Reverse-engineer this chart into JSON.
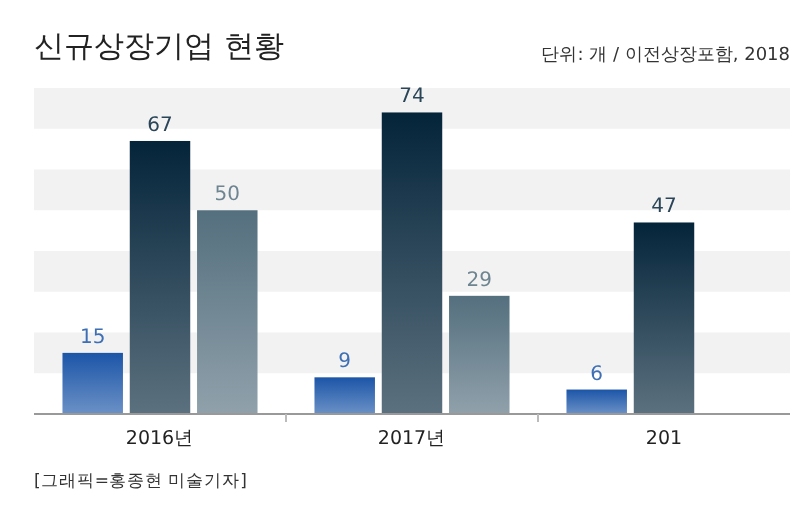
{
  "chart_data": {
    "type": "bar",
    "title": "신규상장기업 현황",
    "subtitle": "단위: 개 / 이전상장포함, 2018",
    "annotations": [
      "[그래픽=홍종현 미술기자]"
    ],
    "categories": [
      "2016년",
      "2017년",
      "201"
    ],
    "series": [
      {
        "color": "#1c55a8",
        "values": [
          15,
          9,
          6
        ]
      },
      {
        "color": "#04243a",
        "values": [
          67,
          74,
          47
        ]
      },
      {
        "color": "#546f7e",
        "values": [
          50,
          29,
          null
        ]
      }
    ],
    "ylim": [
      0,
      80
    ],
    "bands": [
      {
        "axis": "y",
        "from": 10,
        "to": 20,
        "color": "#f2f2f2"
      },
      {
        "axis": "y",
        "from": 30,
        "to": 40,
        "color": "#f2f2f2"
      },
      {
        "axis": "y",
        "from": 50,
        "to": 60,
        "color": "#f2f2f2"
      },
      {
        "axis": "y",
        "from": 70,
        "to": 80,
        "color": "#f2f2f2"
      }
    ],
    "data_labels": true
  }
}
